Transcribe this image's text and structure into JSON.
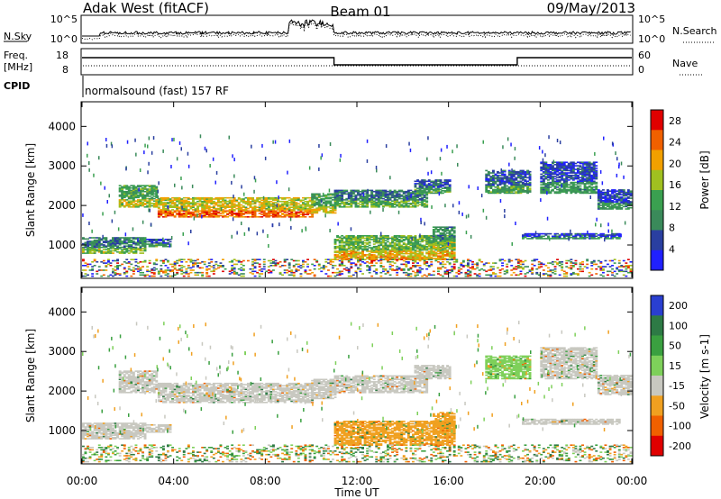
{
  "chart_data": {
    "type": "heatmap",
    "header": {
      "station": "Adak West (fitACF)",
      "beam": "Beam 01",
      "date": "09/May/2013"
    },
    "top_panels": {
      "nsky_label": "N.Sky",
      "nsky_ticks": [
        "10^5",
        "10^0"
      ],
      "nsearch_label": "N.Search",
      "nsearch_ticks": [
        "10^5",
        "10^0"
      ],
      "freq_label": "Freq.",
      "freq_unit": "[MHz]",
      "freq_ticks": [
        "18",
        "8"
      ],
      "nave_label": "Nave",
      "nave_ticks": [
        "60",
        "0"
      ],
      "cpid_label": "CPID",
      "cpid_text": "normalsound (fast) 157 RF",
      "freq_steps": [
        {
          "start": 0.0,
          "end": 11.0,
          "level": "high"
        },
        {
          "start": 11.0,
          "end": 19.0,
          "level": "low"
        },
        {
          "start": 19.0,
          "end": 24.0,
          "level": "high"
        }
      ]
    },
    "x": {
      "label": "Time UT",
      "ticks": [
        "00:00",
        "04:00",
        "08:00",
        "12:00",
        "16:00",
        "20:00",
        "00:00"
      ],
      "range_hours": [
        0,
        24
      ]
    },
    "y": {
      "label": "Slant Range [km]",
      "ticks": [
        1000,
        2000,
        3000,
        4000
      ],
      "range_km": [
        180,
        4600
      ]
    },
    "power": {
      "colorbar_label": "Power [dB]",
      "colorbar_ticks": [
        4,
        8,
        12,
        16,
        20,
        24,
        28
      ],
      "range": [
        0,
        30
      ],
      "colors": [
        "#2020ff",
        "#2a3fa0",
        "#3a8a5a",
        "#3aa050",
        "#a0c020",
        "#f2a000",
        "#f06000",
        "#e00000"
      ]
    },
    "velocity": {
      "colorbar_label": "Velocity [m s-1]",
      "colorbar_ticks": [
        "200",
        "100",
        "50",
        "15",
        "-15",
        "-50",
        "-100",
        "-200"
      ],
      "colors": [
        "#2a3fd0",
        "#2d7a45",
        "#3aa040",
        "#7ed05a",
        "#c8c8c0",
        "#f0a020",
        "#f06000",
        "#e00000"
      ]
    },
    "bands": [
      {
        "name": "band-a",
        "t0": 0.0,
        "t1": 2.8,
        "r0": 780,
        "r1": 1180,
        "pwr": 9,
        "vel": "-15"
      },
      {
        "name": "band-a-tail",
        "t0": 2.8,
        "t1": 3.9,
        "r0": 950,
        "r1": 1150,
        "pwr": 6,
        "vel": "-15"
      },
      {
        "name": "band-b",
        "t0": 1.6,
        "t1": 3.3,
        "r0": 1950,
        "r1": 2500,
        "pwr": 12,
        "vel": "-15"
      },
      {
        "name": "band-c",
        "t0": 3.3,
        "t1": 10.0,
        "r0": 1700,
        "r1": 2200,
        "pwr": 18,
        "vel": "-15"
      },
      {
        "name": "band-d",
        "t0": 10.0,
        "t1": 11.0,
        "r0": 1800,
        "r1": 2300,
        "pwr": 12,
        "vel": "-15"
      },
      {
        "name": "band-e",
        "t0": 11.0,
        "t1": 15.0,
        "r0": 1950,
        "r1": 2400,
        "pwr": 8,
        "vel": "-15"
      },
      {
        "name": "band-f",
        "t0": 14.5,
        "t1": 16.0,
        "r0": 2300,
        "r1": 2650,
        "pwr": 6,
        "vel": "-15"
      },
      {
        "name": "band-g",
        "t0": 11.0,
        "t1": 16.2,
        "r0": 620,
        "r1": 1250,
        "pwr": 14,
        "vel": "-50"
      },
      {
        "name": "band-h",
        "t0": 15.3,
        "t1": 16.3,
        "r0": 900,
        "r1": 1450,
        "pwr": 10,
        "vel": "-50"
      },
      {
        "name": "band-i",
        "t0": 17.6,
        "t1": 19.6,
        "r0": 2300,
        "r1": 2900,
        "pwr": 6,
        "vel": "15"
      },
      {
        "name": "band-j",
        "t0": 19.2,
        "t1": 23.5,
        "r0": 1150,
        "r1": 1300,
        "pwr": 5,
        "vel": "-15"
      },
      {
        "name": "band-k",
        "t0": 20.0,
        "t1": 22.5,
        "r0": 2300,
        "r1": 3100,
        "pwr": 5,
        "vel": "-15"
      },
      {
        "name": "band-l",
        "t0": 22.5,
        "t1": 24.0,
        "r0": 1900,
        "r1": 2400,
        "pwr": 5,
        "vel": "-15"
      },
      {
        "name": "ground-clutter",
        "t0": 0.0,
        "t1": 24.0,
        "r0": 200,
        "r1": 650,
        "pwr": 3,
        "vel": "50"
      }
    ]
  }
}
